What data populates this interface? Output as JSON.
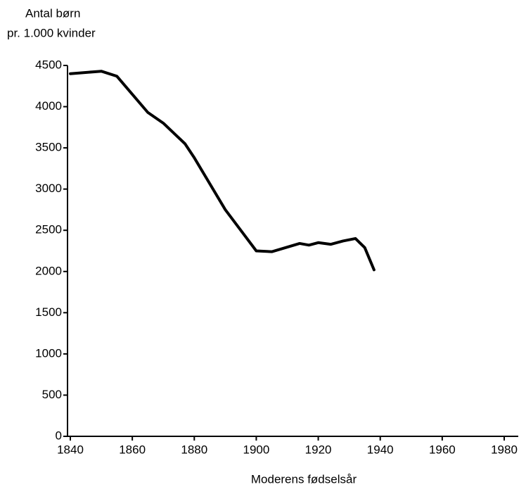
{
  "chart_data": {
    "type": "line",
    "y_label": [
      "Antal børn",
      "pr. 1.000 kvinder"
    ],
    "x_label": "Moderens fødselsår",
    "x": [
      1840,
      1850,
      1855,
      1865,
      1870,
      1877,
      1880,
      1890,
      1896,
      1900,
      1905,
      1914,
      1917,
      1920,
      1924,
      1928,
      1932,
      1935,
      1938
    ],
    "series": [
      {
        "name": "Antal børn pr. 1.000 kvinder",
        "color": "#000000",
        "values": [
          4400,
          4430,
          4370,
          3930,
          3800,
          3550,
          3380,
          2750,
          2450,
          2250,
          2240,
          2340,
          2320,
          2350,
          2330,
          2370,
          2400,
          2290,
          2020
        ]
      }
    ],
    "xlim": [
      1840,
      1980
    ],
    "xticks": [
      1840,
      1860,
      1880,
      1900,
      1920,
      1940,
      1960,
      1980
    ],
    "ylim": [
      0,
      4500
    ],
    "yticks": [
      0,
      500,
      1000,
      1500,
      2000,
      2500,
      3000,
      3500,
      4000,
      4500
    ],
    "grid": false
  }
}
